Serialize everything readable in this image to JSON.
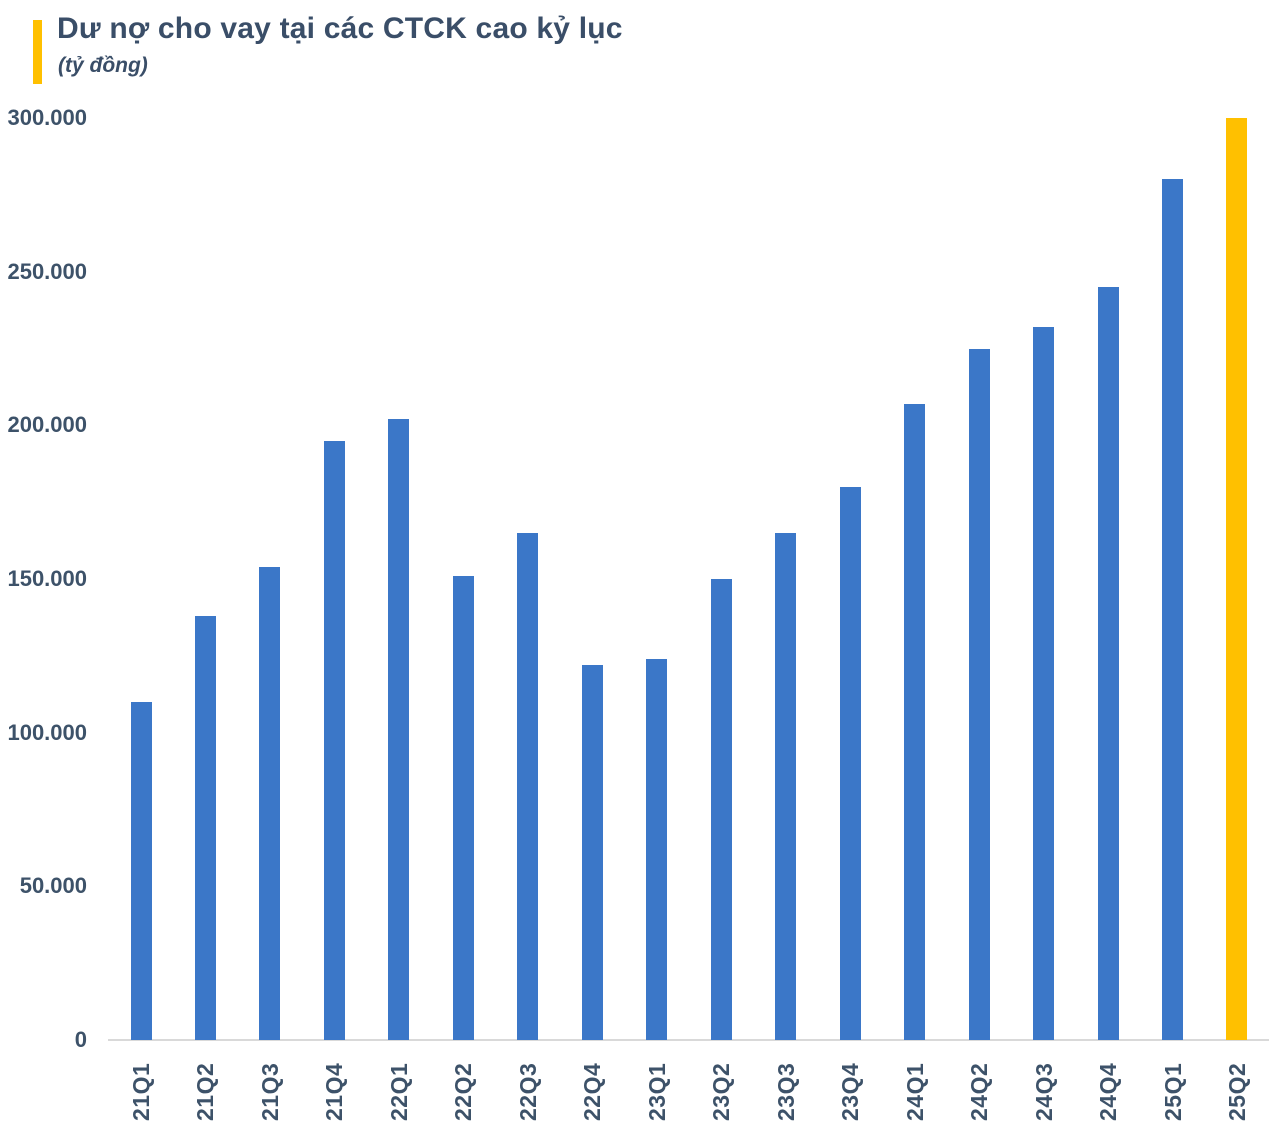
{
  "header": {
    "title": "Dư nợ cho vay tại các CTCK cao kỷ lục",
    "subtitle": "(tỷ đồng)",
    "accent_color": "#FFC000",
    "text_color": "#3A4E68"
  },
  "chart_data": {
    "type": "bar",
    "title": "Dư nợ cho vay tại các CTCK cao kỷ lục",
    "subtitle": "(tỷ đồng)",
    "unit": "tỷ đồng",
    "categories": [
      "21Q1",
      "21Q2",
      "21Q3",
      "21Q4",
      "22Q1",
      "22Q2",
      "22Q3",
      "22Q4",
      "23Q1",
      "23Q2",
      "23Q3",
      "23Q4",
      "24Q1",
      "24Q2",
      "24Q3",
      "24Q4",
      "25Q1",
      "25Q2"
    ],
    "values": [
      110000,
      138000,
      154000,
      195000,
      202000,
      151000,
      165000,
      122000,
      124000,
      150000,
      165000,
      180000,
      207000,
      225000,
      232000,
      245000,
      280000,
      300000
    ],
    "xlabel": "",
    "ylabel": "",
    "ylim": [
      0,
      300000
    ],
    "yticks": {
      "values": [
        0,
        50000,
        100000,
        150000,
        200000,
        250000,
        300000
      ],
      "labels": [
        "0",
        "50.000",
        "100.000",
        "150.000",
        "200.000",
        "250.000",
        "300.000"
      ]
    },
    "grid": false,
    "legend_position": "none",
    "bar_color": "#3B77C8",
    "highlight_category": "25Q2",
    "highlight_color": "#FFC000",
    "axis_line_color": "#D9D9D9",
    "tick_text_color": "#3D5269"
  }
}
